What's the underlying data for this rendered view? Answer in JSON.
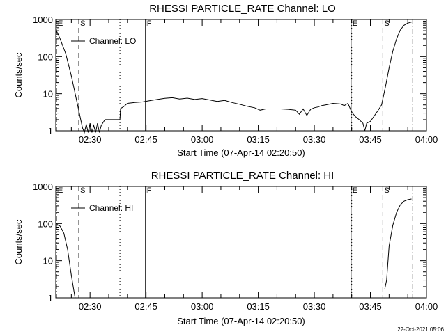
{
  "footer_timestamp": "22-Oct-2021 05:06",
  "chart_data": [
    {
      "type": "line",
      "title": "RHESSI PARTICLE_RATE Channel: LO",
      "xlabel": "Start Time (07-Apr-14 02:20:50)",
      "ylabel": "Counts/sec",
      "yscale": "log",
      "xlim": [
        "02:20:50",
        "04:00:00"
      ],
      "ylim": [
        1,
        1000
      ],
      "x_tick_labels": [
        "02:30",
        "02:45",
        "03:00",
        "03:15",
        "03:30",
        "03:45",
        "04:00"
      ],
      "y_tick_labels": [
        "1",
        "10",
        "100",
        "1000"
      ],
      "legend": "top-left",
      "series": [
        {
          "name": "Channel: LO",
          "points": [
            [
              "02:20:50",
              550
            ],
            [
              "02:22:00",
              300
            ],
            [
              "02:23:30",
              120
            ],
            [
              "02:25:00",
              30
            ],
            [
              "02:26:30",
              6
            ],
            [
              "02:27:30",
              2
            ],
            [
              "02:28:00",
              1.2
            ],
            [
              "02:28:30",
              0.9
            ],
            [
              "02:29:00",
              1.5
            ],
            [
              "02:29:30",
              0.8
            ],
            [
              "02:30:00",
              1.6
            ],
            [
              "02:30:30",
              0.8
            ],
            [
              "02:31:00",
              1.4
            ],
            [
              "02:31:30",
              0.8
            ],
            [
              "02:32:00",
              1.6
            ],
            [
              "02:32:30",
              0.9
            ],
            [
              "02:33:00",
              1.4
            ],
            [
              "02:34:00",
              2.0
            ],
            [
              "02:35:30",
              2.0
            ],
            [
              "02:36:30",
              2.0
            ],
            [
              "02:38:00",
              2.0
            ],
            [
              "02:38:10",
              4.0
            ],
            [
              "02:39:00",
              4.5
            ],
            [
              "02:40:00",
              5.5
            ],
            [
              "02:42:00",
              5.8
            ],
            [
              "02:44:00",
              6.0
            ],
            [
              "02:46:00",
              6.5
            ],
            [
              "02:48:00",
              7.0
            ],
            [
              "02:50:00",
              7.5
            ],
            [
              "02:52:00",
              7.8
            ],
            [
              "02:54:00",
              7.2
            ],
            [
              "02:56:00",
              7.6
            ],
            [
              "02:58:00",
              7.0
            ],
            [
              "03:00:00",
              7.4
            ],
            [
              "03:02:00",
              6.8
            ],
            [
              "03:04:00",
              6.2
            ],
            [
              "03:06:00",
              6.6
            ],
            [
              "03:08:00",
              5.8
            ],
            [
              "03:10:00",
              5.2
            ],
            [
              "03:12:00",
              4.6
            ],
            [
              "03:14:00",
              4.2
            ],
            [
              "03:15:30",
              3.6
            ],
            [
              "03:17:00",
              3.9
            ],
            [
              "03:19:00",
              3.9
            ],
            [
              "03:21:00",
              3.9
            ],
            [
              "03:23:00",
              3.8
            ],
            [
              "03:25:00",
              3.6
            ],
            [
              "03:26:00",
              2.8
            ],
            [
              "03:27:00",
              3.9
            ],
            [
              "03:28:00",
              2.6
            ],
            [
              "03:29:00",
              3.8
            ],
            [
              "03:30:00",
              4.2
            ],
            [
              "03:31:00",
              4.4
            ],
            [
              "03:32:00",
              4.8
            ],
            [
              "03:33:00",
              5.0
            ],
            [
              "03:35:00",
              5.5
            ],
            [
              "03:37:00",
              5.3
            ],
            [
              "03:38:00",
              4.8
            ],
            [
              "03:39:00",
              5.5
            ],
            [
              "03:40:00",
              3.2
            ],
            [
              "03:41:00",
              2.4
            ],
            [
              "03:42:00",
              2.0
            ],
            [
              "03:43:00",
              1.6
            ],
            [
              "03:43:30",
              1.0
            ],
            [
              "03:44:00",
              1.6
            ],
            [
              "03:45:00",
              1.8
            ],
            [
              "03:46:00",
              2.5
            ],
            [
              "03:47:00",
              3.5
            ],
            [
              "03:48:00",
              5.0
            ],
            [
              "03:49:00",
              15
            ],
            [
              "03:50:00",
              50
            ],
            [
              "03:51:00",
              140
            ],
            [
              "03:52:00",
              300
            ],
            [
              "03:53:00",
              520
            ],
            [
              "03:54:00",
              700
            ],
            [
              "03:55:00",
              800
            ],
            [
              "03:56:00",
              850
            ]
          ]
        }
      ],
      "markers": [
        {
          "label": "E",
          "time": "02:20:50",
          "style": "dash-dot"
        },
        {
          "label": "S",
          "time": "02:27:00",
          "style": "dashed"
        },
        {
          "label": "",
          "time": "02:38:00",
          "style": "dotted"
        },
        {
          "label": "F",
          "time": "02:44:50",
          "style": "solid"
        },
        {
          "label": "E",
          "time": "03:39:50",
          "style": "solid"
        },
        {
          "label": "",
          "time": "03:40:00",
          "style": "dotted"
        },
        {
          "label": "S",
          "time": "03:48:20",
          "style": "dashed"
        },
        {
          "label": "",
          "time": "03:56:20",
          "style": "dash-dot"
        }
      ]
    },
    {
      "type": "line",
      "title": "RHESSI PARTICLE_RATE Channel: HI",
      "xlabel": "Start Time (07-Apr-14 02:20:50)",
      "ylabel": "Counts/sec",
      "yscale": "log",
      "xlim": [
        "02:20:50",
        "04:00:00"
      ],
      "ylim": [
        1,
        1000
      ],
      "x_tick_labels": [
        "02:30",
        "02:45",
        "03:00",
        "03:15",
        "03:30",
        "03:45",
        "04:00"
      ],
      "y_tick_labels": [
        "1",
        "10",
        "100",
        "1000"
      ],
      "legend": "top-left",
      "series": [
        {
          "name": "Channel: HI",
          "segments": [
            [
              [
                "02:20:50",
                100
              ],
              [
                "02:22:00",
                85
              ],
              [
                "02:23:00",
                55
              ],
              [
                "02:24:00",
                20
              ],
              [
                "02:25:00",
                4
              ],
              [
                "02:26:00",
                1
              ]
            ],
            [
              [
                "03:48:50",
                1.7
              ],
              [
                "03:49:20",
                3
              ],
              [
                "03:50:00",
                25
              ],
              [
                "03:51:00",
                90
              ],
              [
                "03:52:00",
                200
              ],
              [
                "03:53:00",
                320
              ],
              [
                "03:54:00",
                400
              ],
              [
                "03:55:00",
                440
              ],
              [
                "03:56:00",
                460
              ]
            ]
          ]
        }
      ],
      "markers": [
        {
          "label": "E",
          "time": "02:20:50",
          "style": "dash-dot"
        },
        {
          "label": "S",
          "time": "02:27:00",
          "style": "dashed"
        },
        {
          "label": "",
          "time": "02:38:00",
          "style": "dotted"
        },
        {
          "label": "F",
          "time": "02:44:50",
          "style": "solid"
        },
        {
          "label": "E",
          "time": "03:39:50",
          "style": "solid"
        },
        {
          "label": "",
          "time": "03:40:00",
          "style": "dotted"
        },
        {
          "label": "S",
          "time": "03:48:20",
          "style": "dashed"
        },
        {
          "label": "",
          "time": "03:56:20",
          "style": "dash-dot"
        }
      ]
    }
  ]
}
